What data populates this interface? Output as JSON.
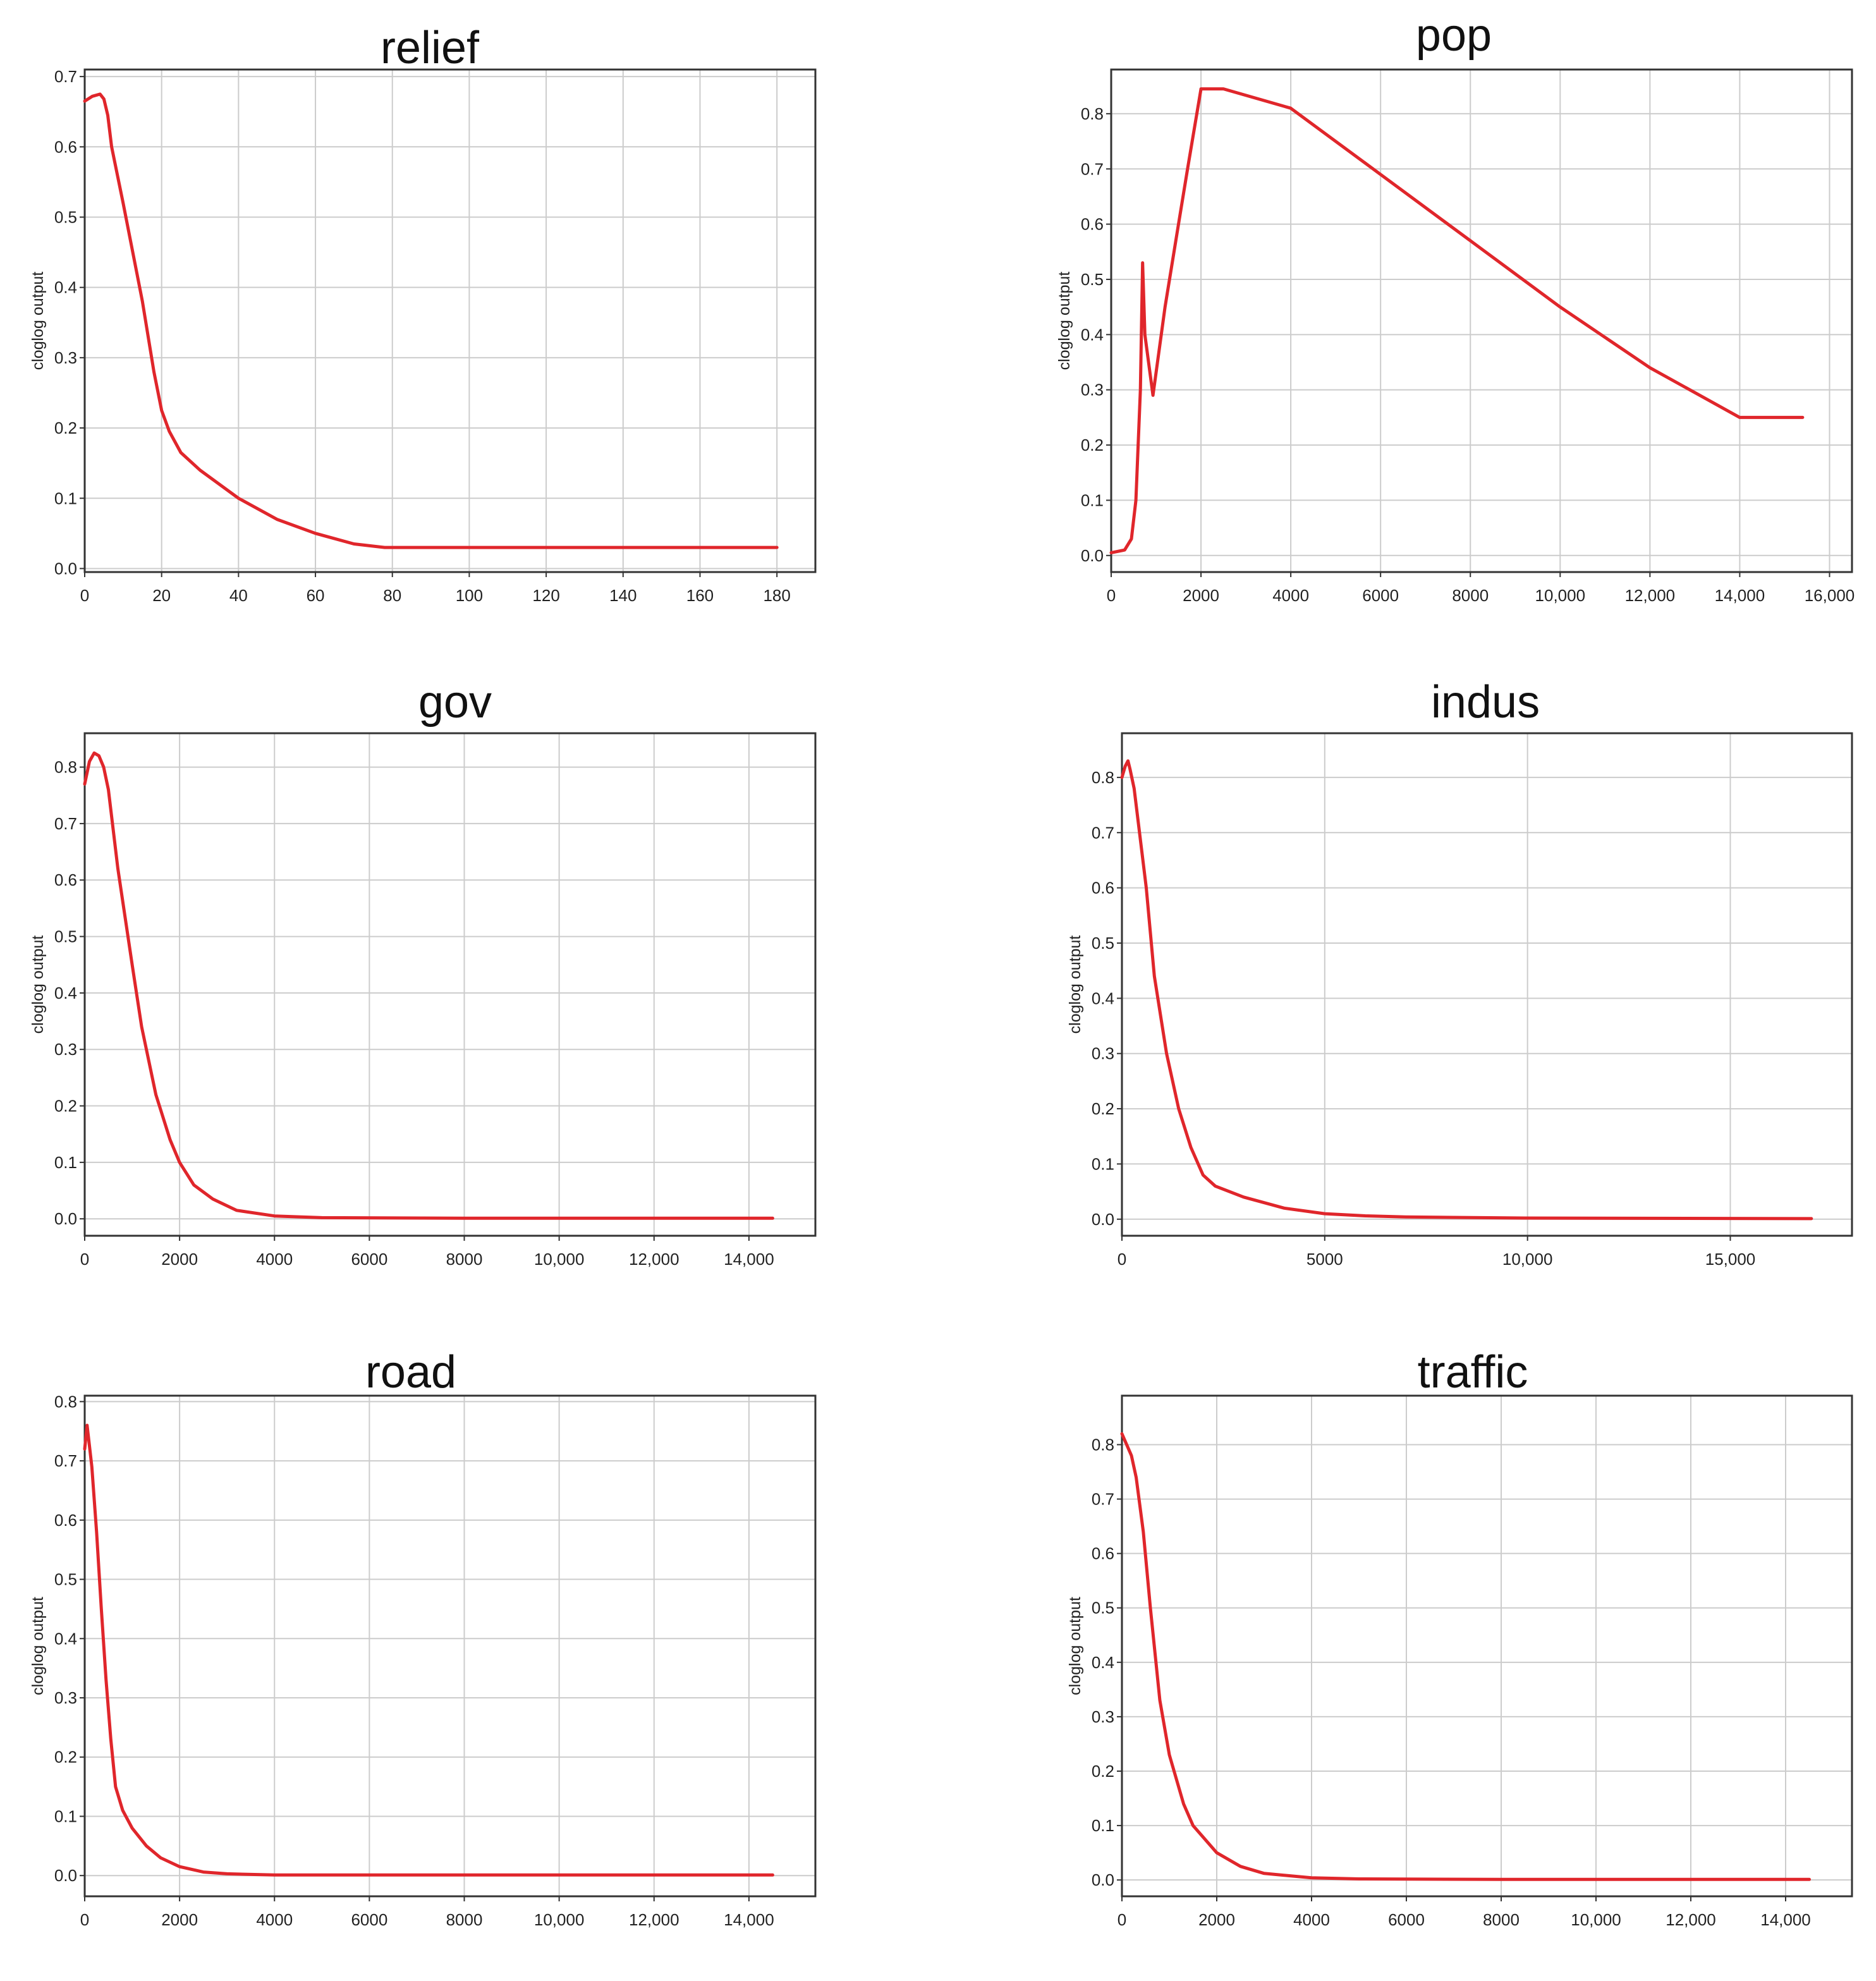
{
  "colors": {
    "curve": "#e0262b",
    "grid": "#cccccc",
    "frame": "#333333",
    "background": "#ffffff"
  },
  "chart_data": [
    {
      "type": "line",
      "title": "relief",
      "xlabel": "",
      "ylabel": "cloglog output",
      "xlim": [
        0,
        190
      ],
      "ylim": [
        -0.005,
        0.71
      ],
      "xticks": [
        0,
        20,
        40,
        60,
        80,
        100,
        120,
        140,
        160,
        180
      ],
      "xtick_labels": [
        "0",
        "20",
        "40",
        "60",
        "80",
        "100",
        "120",
        "140",
        "160",
        "180"
      ],
      "yticks": [
        0.0,
        0.1,
        0.2,
        0.3,
        0.4,
        0.5,
        0.6,
        0.7
      ],
      "ytick_labels": [
        "0.0",
        "0.1",
        "0.2",
        "0.3",
        "0.4",
        "0.5",
        "0.6",
        "0.7"
      ],
      "series": [
        {
          "name": "relief",
          "x": [
            0,
            2,
            4,
            5,
            6,
            7,
            10,
            15,
            18,
            20,
            22,
            25,
            30,
            40,
            50,
            60,
            70,
            78,
            100,
            150,
            180
          ],
          "y": [
            0.665,
            0.672,
            0.675,
            0.668,
            0.645,
            0.6,
            0.52,
            0.38,
            0.28,
            0.225,
            0.195,
            0.165,
            0.14,
            0.1,
            0.07,
            0.05,
            0.035,
            0.03,
            0.03,
            0.03,
            0.03
          ]
        }
      ]
    },
    {
      "type": "line",
      "title": "pop",
      "xlabel": "",
      "ylabel": "cloglog output",
      "xlim": [
        0,
        16500
      ],
      "ylim": [
        -0.03,
        0.88
      ],
      "xticks": [
        0,
        2000,
        4000,
        6000,
        8000,
        10000,
        12000,
        14000,
        16000
      ],
      "xtick_labels": [
        "0",
        "2000",
        "4000",
        "6000",
        "8000",
        "10,000",
        "12,000",
        "14,000",
        "16,000"
      ],
      "yticks": [
        0.0,
        0.1,
        0.2,
        0.3,
        0.4,
        0.5,
        0.6,
        0.7,
        0.8
      ],
      "ytick_labels": [
        "0.0",
        "0.1",
        "0.2",
        "0.3",
        "0.4",
        "0.5",
        "0.6",
        "0.7",
        "0.8"
      ],
      "series": [
        {
          "name": "pop",
          "x": [
            0,
            300,
            450,
            550,
            650,
            700,
            750,
            930,
            1200,
            1500,
            1700,
            2000,
            2500,
            4000,
            6000,
            8000,
            10000,
            12000,
            14000,
            15400
          ],
          "y": [
            0.005,
            0.01,
            0.03,
            0.1,
            0.3,
            0.53,
            0.4,
            0.29,
            0.45,
            0.6,
            0.7,
            0.845,
            0.845,
            0.81,
            0.69,
            0.57,
            0.45,
            0.34,
            0.25,
            0.25
          ]
        }
      ]
    },
    {
      "type": "line",
      "title": "gov",
      "xlabel": "",
      "ylabel": "cloglog output",
      "xlim": [
        0,
        15400
      ],
      "ylim": [
        -0.03,
        0.86
      ],
      "xticks": [
        0,
        2000,
        4000,
        6000,
        8000,
        10000,
        12000,
        14000
      ],
      "xtick_labels": [
        "0",
        "2000",
        "4000",
        "6000",
        "8000",
        "10,000",
        "12,000",
        "14,000"
      ],
      "yticks": [
        0.0,
        0.1,
        0.2,
        0.3,
        0.4,
        0.5,
        0.6,
        0.7,
        0.8
      ],
      "ytick_labels": [
        "0.0",
        "0.1",
        "0.2",
        "0.3",
        "0.4",
        "0.5",
        "0.6",
        "0.7",
        "0.8"
      ],
      "series": [
        {
          "name": "gov",
          "x": [
            0,
            100,
            200,
            300,
            400,
            500,
            700,
            1000,
            1200,
            1500,
            1800,
            2000,
            2300,
            2700,
            3200,
            4000,
            5000,
            8000,
            14500
          ],
          "y": [
            0.77,
            0.81,
            0.825,
            0.82,
            0.8,
            0.76,
            0.62,
            0.45,
            0.34,
            0.22,
            0.14,
            0.1,
            0.06,
            0.035,
            0.015,
            0.005,
            0.002,
            0.001,
            0.001
          ]
        }
      ]
    },
    {
      "type": "line",
      "title": "indus",
      "xlabel": "",
      "ylabel": "cloglog output",
      "xlim": [
        0,
        18000
      ],
      "ylim": [
        -0.03,
        0.88
      ],
      "xticks": [
        0,
        5000,
        10000,
        15000
      ],
      "xtick_labels": [
        "0",
        "5000",
        "10,000",
        "15,000"
      ],
      "yticks": [
        0.0,
        0.1,
        0.2,
        0.3,
        0.4,
        0.5,
        0.6,
        0.7,
        0.8
      ],
      "ytick_labels": [
        "0.0",
        "0.1",
        "0.2",
        "0.3",
        "0.4",
        "0.5",
        "0.6",
        "0.7",
        "0.8"
      ],
      "series": [
        {
          "name": "indus",
          "x": [
            0,
            80,
            150,
            200,
            300,
            400,
            600,
            800,
            1100,
            1400,
            1700,
            2000,
            2300,
            3000,
            4000,
            5000,
            6000,
            7000,
            10000,
            17000
          ],
          "y": [
            0.8,
            0.82,
            0.83,
            0.815,
            0.78,
            0.72,
            0.6,
            0.44,
            0.3,
            0.2,
            0.13,
            0.08,
            0.06,
            0.04,
            0.02,
            0.01,
            0.006,
            0.004,
            0.002,
            0.001
          ]
        }
      ]
    },
    {
      "type": "line",
      "title": "road",
      "xlabel": "",
      "ylabel": "cloglog output",
      "xlim": [
        0,
        15400
      ],
      "ylim": [
        -0.035,
        0.81
      ],
      "xticks": [
        0,
        2000,
        4000,
        6000,
        8000,
        10000,
        12000,
        14000
      ],
      "xtick_labels": [
        "0",
        "2000",
        "4000",
        "6000",
        "8000",
        "10,000",
        "12,000",
        "14,000"
      ],
      "yticks": [
        0.0,
        0.1,
        0.2,
        0.3,
        0.4,
        0.5,
        0.6,
        0.7,
        0.8
      ],
      "ytick_labels": [
        "0.0",
        "0.1",
        "0.2",
        "0.3",
        "0.4",
        "0.5",
        "0.6",
        "0.7",
        "0.8"
      ],
      "series": [
        {
          "name": "road",
          "x": [
            0,
            50,
            150,
            250,
            350,
            450,
            550,
            650,
            800,
            1000,
            1300,
            1600,
            2000,
            2500,
            3000,
            4000,
            6000,
            14500
          ],
          "y": [
            0.72,
            0.76,
            0.69,
            0.58,
            0.45,
            0.33,
            0.23,
            0.15,
            0.11,
            0.08,
            0.05,
            0.03,
            0.015,
            0.006,
            0.003,
            0.001,
            0.001,
            0.001
          ]
        }
      ]
    },
    {
      "type": "line",
      "title": "traffic",
      "xlabel": "",
      "ylabel": "cloglog output",
      "xlim": [
        0,
        15400
      ],
      "ylim": [
        -0.03,
        0.89
      ],
      "xticks": [
        0,
        2000,
        4000,
        6000,
        8000,
        10000,
        12000,
        14000
      ],
      "xtick_labels": [
        "0",
        "2000",
        "4000",
        "6000",
        "8000",
        "10,000",
        "12,000",
        "14,000"
      ],
      "yticks": [
        0.0,
        0.1,
        0.2,
        0.3,
        0.4,
        0.5,
        0.6,
        0.7,
        0.8
      ],
      "ytick_labels": [
        "0.0",
        "0.1",
        "0.2",
        "0.3",
        "0.4",
        "0.5",
        "0.6",
        "0.7",
        "0.8"
      ],
      "series": [
        {
          "name": "traffic",
          "x": [
            0,
            100,
            200,
            300,
            450,
            600,
            800,
            1000,
            1300,
            1500,
            2000,
            2500,
            3000,
            4000,
            5000,
            8000,
            14500
          ],
          "y": [
            0.82,
            0.8,
            0.78,
            0.74,
            0.64,
            0.5,
            0.33,
            0.23,
            0.14,
            0.1,
            0.05,
            0.025,
            0.012,
            0.004,
            0.002,
            0.001,
            0.001
          ]
        }
      ]
    }
  ]
}
